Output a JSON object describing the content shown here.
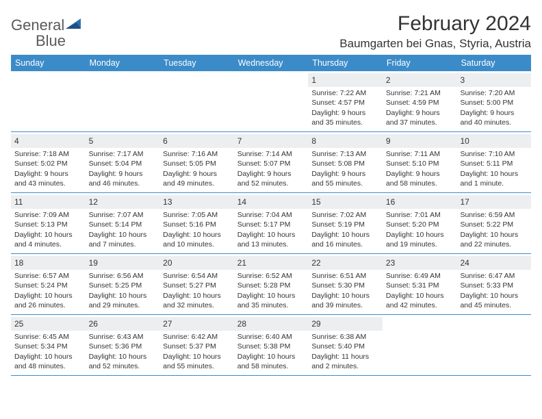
{
  "brand": {
    "name1": "General",
    "name2": "Blue"
  },
  "title": "February 2024",
  "location": "Baumgarten bei Gnas, Styria, Austria",
  "colors": {
    "header_bg": "#3b8bc9",
    "header_text": "#ffffff",
    "daynum_bg": "#eceeef",
    "border": "#3b8bc9",
    "text": "#333333",
    "brand_gray": "#5a5a5a",
    "brand_blue": "#3b7fc4",
    "page_bg": "#ffffff"
  },
  "dow": [
    "Sunday",
    "Monday",
    "Tuesday",
    "Wednesday",
    "Thursday",
    "Friday",
    "Saturday"
  ],
  "weeks": [
    [
      {
        "n": "",
        "sr": "",
        "ss": "",
        "dl": ""
      },
      {
        "n": "",
        "sr": "",
        "ss": "",
        "dl": ""
      },
      {
        "n": "",
        "sr": "",
        "ss": "",
        "dl": ""
      },
      {
        "n": "",
        "sr": "",
        "ss": "",
        "dl": ""
      },
      {
        "n": "1",
        "sr": "Sunrise: 7:22 AM",
        "ss": "Sunset: 4:57 PM",
        "dl": "Daylight: 9 hours and 35 minutes."
      },
      {
        "n": "2",
        "sr": "Sunrise: 7:21 AM",
        "ss": "Sunset: 4:59 PM",
        "dl": "Daylight: 9 hours and 37 minutes."
      },
      {
        "n": "3",
        "sr": "Sunrise: 7:20 AM",
        "ss": "Sunset: 5:00 PM",
        "dl": "Daylight: 9 hours and 40 minutes."
      }
    ],
    [
      {
        "n": "4",
        "sr": "Sunrise: 7:18 AM",
        "ss": "Sunset: 5:02 PM",
        "dl": "Daylight: 9 hours and 43 minutes."
      },
      {
        "n": "5",
        "sr": "Sunrise: 7:17 AM",
        "ss": "Sunset: 5:04 PM",
        "dl": "Daylight: 9 hours and 46 minutes."
      },
      {
        "n": "6",
        "sr": "Sunrise: 7:16 AM",
        "ss": "Sunset: 5:05 PM",
        "dl": "Daylight: 9 hours and 49 minutes."
      },
      {
        "n": "7",
        "sr": "Sunrise: 7:14 AM",
        "ss": "Sunset: 5:07 PM",
        "dl": "Daylight: 9 hours and 52 minutes."
      },
      {
        "n": "8",
        "sr": "Sunrise: 7:13 AM",
        "ss": "Sunset: 5:08 PM",
        "dl": "Daylight: 9 hours and 55 minutes."
      },
      {
        "n": "9",
        "sr": "Sunrise: 7:11 AM",
        "ss": "Sunset: 5:10 PM",
        "dl": "Daylight: 9 hours and 58 minutes."
      },
      {
        "n": "10",
        "sr": "Sunrise: 7:10 AM",
        "ss": "Sunset: 5:11 PM",
        "dl": "Daylight: 10 hours and 1 minute."
      }
    ],
    [
      {
        "n": "11",
        "sr": "Sunrise: 7:09 AM",
        "ss": "Sunset: 5:13 PM",
        "dl": "Daylight: 10 hours and 4 minutes."
      },
      {
        "n": "12",
        "sr": "Sunrise: 7:07 AM",
        "ss": "Sunset: 5:14 PM",
        "dl": "Daylight: 10 hours and 7 minutes."
      },
      {
        "n": "13",
        "sr": "Sunrise: 7:05 AM",
        "ss": "Sunset: 5:16 PM",
        "dl": "Daylight: 10 hours and 10 minutes."
      },
      {
        "n": "14",
        "sr": "Sunrise: 7:04 AM",
        "ss": "Sunset: 5:17 PM",
        "dl": "Daylight: 10 hours and 13 minutes."
      },
      {
        "n": "15",
        "sr": "Sunrise: 7:02 AM",
        "ss": "Sunset: 5:19 PM",
        "dl": "Daylight: 10 hours and 16 minutes."
      },
      {
        "n": "16",
        "sr": "Sunrise: 7:01 AM",
        "ss": "Sunset: 5:20 PM",
        "dl": "Daylight: 10 hours and 19 minutes."
      },
      {
        "n": "17",
        "sr": "Sunrise: 6:59 AM",
        "ss": "Sunset: 5:22 PM",
        "dl": "Daylight: 10 hours and 22 minutes."
      }
    ],
    [
      {
        "n": "18",
        "sr": "Sunrise: 6:57 AM",
        "ss": "Sunset: 5:24 PM",
        "dl": "Daylight: 10 hours and 26 minutes."
      },
      {
        "n": "19",
        "sr": "Sunrise: 6:56 AM",
        "ss": "Sunset: 5:25 PM",
        "dl": "Daylight: 10 hours and 29 minutes."
      },
      {
        "n": "20",
        "sr": "Sunrise: 6:54 AM",
        "ss": "Sunset: 5:27 PM",
        "dl": "Daylight: 10 hours and 32 minutes."
      },
      {
        "n": "21",
        "sr": "Sunrise: 6:52 AM",
        "ss": "Sunset: 5:28 PM",
        "dl": "Daylight: 10 hours and 35 minutes."
      },
      {
        "n": "22",
        "sr": "Sunrise: 6:51 AM",
        "ss": "Sunset: 5:30 PM",
        "dl": "Daylight: 10 hours and 39 minutes."
      },
      {
        "n": "23",
        "sr": "Sunrise: 6:49 AM",
        "ss": "Sunset: 5:31 PM",
        "dl": "Daylight: 10 hours and 42 minutes."
      },
      {
        "n": "24",
        "sr": "Sunrise: 6:47 AM",
        "ss": "Sunset: 5:33 PM",
        "dl": "Daylight: 10 hours and 45 minutes."
      }
    ],
    [
      {
        "n": "25",
        "sr": "Sunrise: 6:45 AM",
        "ss": "Sunset: 5:34 PM",
        "dl": "Daylight: 10 hours and 48 minutes."
      },
      {
        "n": "26",
        "sr": "Sunrise: 6:43 AM",
        "ss": "Sunset: 5:36 PM",
        "dl": "Daylight: 10 hours and 52 minutes."
      },
      {
        "n": "27",
        "sr": "Sunrise: 6:42 AM",
        "ss": "Sunset: 5:37 PM",
        "dl": "Daylight: 10 hours and 55 minutes."
      },
      {
        "n": "28",
        "sr": "Sunrise: 6:40 AM",
        "ss": "Sunset: 5:38 PM",
        "dl": "Daylight: 10 hours and 58 minutes."
      },
      {
        "n": "29",
        "sr": "Sunrise: 6:38 AM",
        "ss": "Sunset: 5:40 PM",
        "dl": "Daylight: 11 hours and 2 minutes."
      },
      {
        "n": "",
        "sr": "",
        "ss": "",
        "dl": ""
      },
      {
        "n": "",
        "sr": "",
        "ss": "",
        "dl": ""
      }
    ]
  ]
}
